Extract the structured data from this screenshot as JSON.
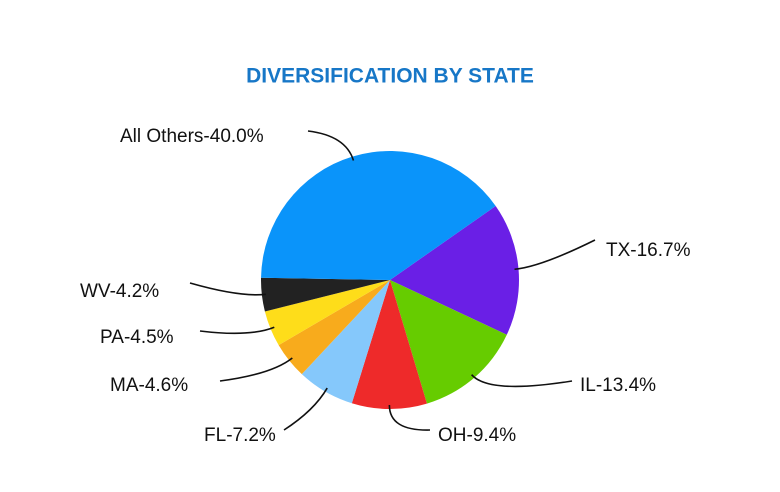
{
  "chart_data": {
    "type": "pie",
    "title": "DIVERSIFICATION BY STATE",
    "categories": [
      "TX",
      "IL",
      "OH",
      "FL",
      "MA",
      "PA",
      "WV",
      "All Others"
    ],
    "values": [
      16.7,
      13.4,
      9.4,
      7.2,
      4.6,
      4.5,
      4.2,
      40.0
    ],
    "value_labels": [
      "-16.7%",
      "-13.4%",
      "-9.4%",
      "-7.2%",
      "-4.6%",
      "-4.5%",
      "-4.2%",
      "-40.0%"
    ],
    "colors": [
      "#6a1fe6",
      "#66cc00",
      "#ee2a2a",
      "#85c8fb",
      "#f8ab1c",
      "#fedd1a",
      "#222222",
      "#0a94fa"
    ]
  }
}
